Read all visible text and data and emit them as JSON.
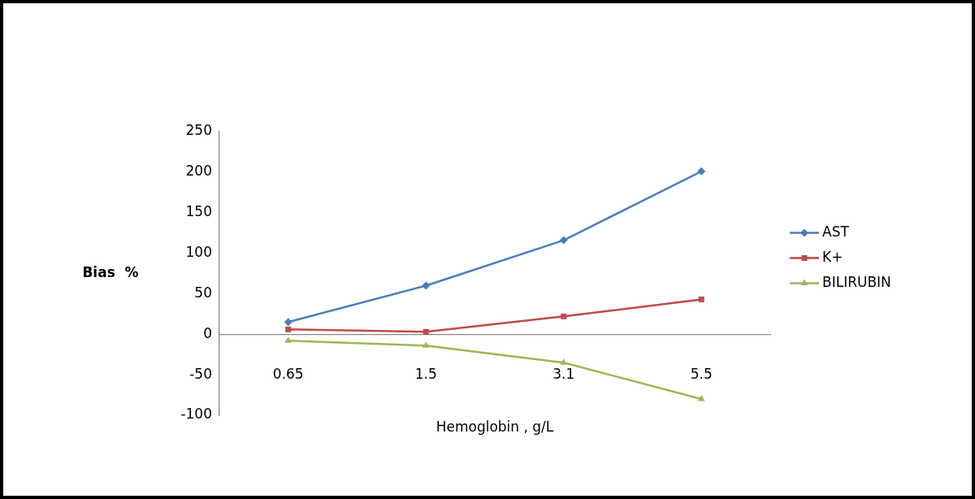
{
  "chart_data": {
    "type": "line",
    "xlabel": "Hemoglobin , g/L",
    "ylabel": "Bias  %",
    "categories": [
      "0.65",
      "1.5",
      "3.1",
      "5.5"
    ],
    "series": [
      {
        "name": "AST",
        "color": "#4a7ebb",
        "marker": "diamond",
        "values": [
          15,
          60,
          116,
          201
        ]
      },
      {
        "name": "K+",
        "color": "#be4b48",
        "marker": "square",
        "values": [
          6,
          3,
          22,
          43
        ]
      },
      {
        "name": "BILIRUBIN",
        "color": "#98b954",
        "marker": "triangle",
        "values": [
          -8,
          -14,
          -35,
          -80
        ]
      }
    ],
    "ylim": [
      -100,
      250
    ],
    "yticks": [
      -100,
      -50,
      0,
      50,
      100,
      150,
      200,
      250
    ],
    "grid": false,
    "legend": "right",
    "line_style": "solid"
  }
}
